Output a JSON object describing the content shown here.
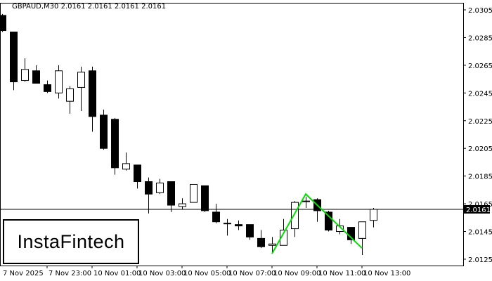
{
  "header": {
    "title": "GBPAUD,M30  2.0161 2.0161 2.0161 2.0161"
  },
  "logo": {
    "text": "InstaFintech"
  },
  "chart_data": {
    "type": "candlestick",
    "symbol": "GBPAUD",
    "timeframe": "M30",
    "ylim": [
      2.0119,
      2.0311
    ],
    "y_ticks": [
      "2.0305",
      "2.0285",
      "2.0265",
      "2.0245",
      "2.0225",
      "2.0205",
      "2.0185",
      "2.0165",
      "2.0145",
      "2.0125"
    ],
    "x_ticks": [
      {
        "label": "7 Nov 2025",
        "index": 0
      },
      {
        "label": "7 Nov 23:00",
        "index": 4
      },
      {
        "label": "10 Nov 01:00",
        "index": 8
      },
      {
        "label": "10 Nov 03:00",
        "index": 12
      },
      {
        "label": "10 Nov 05:00",
        "index": 16
      },
      {
        "label": "10 Nov 07:00",
        "index": 20
      },
      {
        "label": "10 Nov 09:00",
        "index": 24
      },
      {
        "label": "10 Nov 11:00",
        "index": 28
      },
      {
        "label": "10 Nov 13:00",
        "index": 32
      }
    ],
    "current_price": "2.0161",
    "candles": [
      {
        "o": 2.0301,
        "h": 2.0302,
        "l": 2.0289,
        "c": 2.029
      },
      {
        "o": 2.0289,
        "h": 2.0289,
        "l": 2.0247,
        "c": 2.0253
      },
      {
        "o": 2.0254,
        "h": 2.027,
        "l": 2.0253,
        "c": 2.0262
      },
      {
        "o": 2.0261,
        "h": 2.0265,
        "l": 2.0252,
        "c": 2.0252
      },
      {
        "o": 2.0251,
        "h": 2.0254,
        "l": 2.0245,
        "c": 2.0246
      },
      {
        "o": 2.0245,
        "h": 2.0265,
        "l": 2.0241,
        "c": 2.0261
      },
      {
        "o": 2.0239,
        "h": 2.025,
        "l": 2.023,
        "c": 2.0248
      },
      {
        "o": 2.0249,
        "h": 2.0264,
        "l": 2.0232,
        "c": 2.026
      },
      {
        "o": 2.0261,
        "h": 2.0264,
        "l": 2.0217,
        "c": 2.0228
      },
      {
        "o": 2.0229,
        "h": 2.0233,
        "l": 2.0204,
        "c": 2.0205
      },
      {
        "o": 2.0226,
        "h": 2.0227,
        "l": 2.0186,
        "c": 2.0191
      },
      {
        "o": 2.019,
        "h": 2.0202,
        "l": 2.0189,
        "c": 2.0194
      },
      {
        "o": 2.0193,
        "h": 2.0193,
        "l": 2.0176,
        "c": 2.0181
      },
      {
        "o": 2.0181,
        "h": 2.0184,
        "l": 2.0158,
        "c": 2.0172
      },
      {
        "o": 2.0173,
        "h": 2.0183,
        "l": 2.0172,
        "c": 2.018
      },
      {
        "o": 2.0181,
        "h": 2.0181,
        "l": 2.0159,
        "c": 2.0164
      },
      {
        "o": 2.0163,
        "h": 2.0169,
        "l": 2.0161,
        "c": 2.0165
      },
      {
        "o": 2.0166,
        "h": 2.0179,
        "l": 2.0166,
        "c": 2.0179
      },
      {
        "o": 2.0178,
        "h": 2.0178,
        "l": 2.0159,
        "c": 2.016
      },
      {
        "o": 2.0159,
        "h": 2.0165,
        "l": 2.0151,
        "c": 2.0152
      },
      {
        "o": 2.0151,
        "h": 2.0154,
        "l": 2.0142,
        "c": 2.0151
      },
      {
        "o": 2.015,
        "h": 2.0153,
        "l": 2.0146,
        "c": 2.0149
      },
      {
        "o": 2.015,
        "h": 2.015,
        "l": 2.0139,
        "c": 2.0141
      },
      {
        "o": 2.014,
        "h": 2.0146,
        "l": 2.0133,
        "c": 2.0134
      },
      {
        "o": 2.0135,
        "h": 2.0141,
        "l": 2.0129,
        "c": 2.0136
      },
      {
        "o": 2.0135,
        "h": 2.0154,
        "l": 2.0135,
        "c": 2.0146
      },
      {
        "o": 2.0147,
        "h": 2.0167,
        "l": 2.0141,
        "c": 2.0166
      },
      {
        "o": 2.0167,
        "h": 2.017,
        "l": 2.0162,
        "c": 2.0167
      },
      {
        "o": 2.0168,
        "h": 2.0169,
        "l": 2.0152,
        "c": 2.016
      },
      {
        "o": 2.0159,
        "h": 2.016,
        "l": 2.0145,
        "c": 2.0146
      },
      {
        "o": 2.0145,
        "h": 2.0154,
        "l": 2.0143,
        "c": 2.0149
      },
      {
        "o": 2.0148,
        "h": 2.0148,
        "l": 2.0136,
        "c": 2.0139
      },
      {
        "o": 2.014,
        "h": 2.0152,
        "l": 2.0128,
        "c": 2.0152
      },
      {
        "o": 2.0153,
        "h": 2.0162,
        "l": 2.0148,
        "c": 2.0161
      }
    ],
    "pattern": {
      "color": "#00e000",
      "points": [
        {
          "index": 24,
          "price": 2.0129
        },
        {
          "index": 27,
          "price": 2.0172
        },
        {
          "index": 32,
          "price": 2.0133
        }
      ]
    },
    "colors": {
      "bull_fill": "#ffffff",
      "bear_fill": "#000000",
      "outline": "#000000",
      "price_label_bg": "#000000"
    }
  }
}
